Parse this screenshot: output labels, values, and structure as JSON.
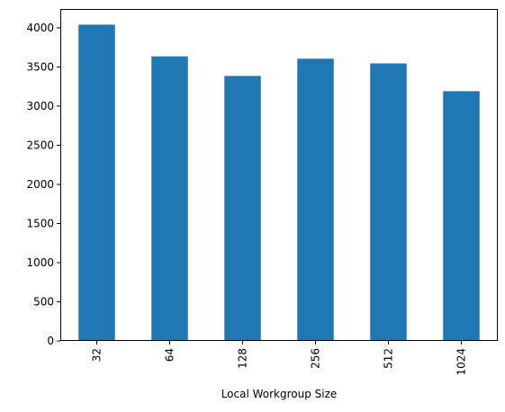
{
  "chart_data": {
    "type": "bar",
    "categories": [
      "32",
      "64",
      "128",
      "256",
      "512",
      "1024"
    ],
    "values": [
      4040,
      3635,
      3385,
      3605,
      3545,
      3190
    ],
    "xlabel": "Local Workgroup Size",
    "ylabel": "",
    "ylim": [
      0,
      4240
    ],
    "yticks": [
      0,
      500,
      1000,
      1500,
      2000,
      2500,
      3000,
      3500,
      4000
    ],
    "grid": false,
    "legend": "none",
    "bar_color": "#1f77b4",
    "xtick_rotation": "vertical"
  }
}
